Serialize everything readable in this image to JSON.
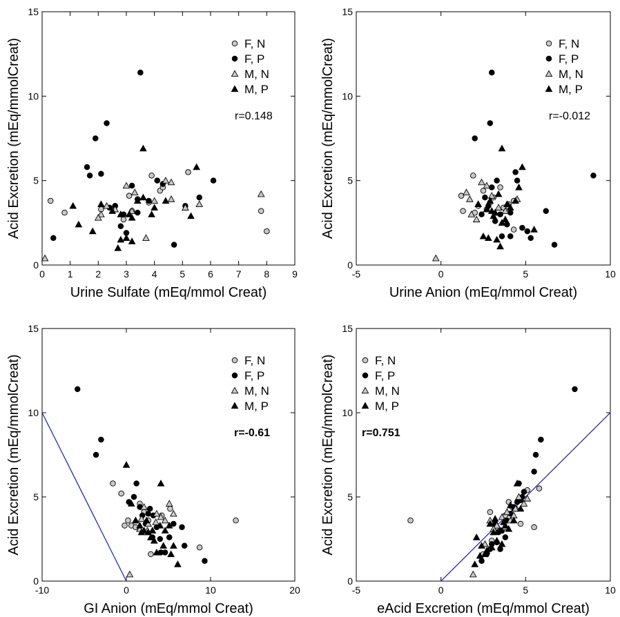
{
  "legend": {
    "FN": {
      "label": "F, N",
      "fill": "#c8c8c8",
      "shape": "circle"
    },
    "FP": {
      "label": "F, P",
      "fill": "#000000",
      "shape": "circle"
    },
    "MN": {
      "label": "M, N",
      "fill": "#c8c8c8",
      "shape": "triangle"
    },
    "MP": {
      "label": "M, P",
      "fill": "#000000",
      "shape": "triangle"
    }
  },
  "line_color": "#2b2ba8",
  "chart_data": [
    {
      "type": "scatter",
      "xlabel": "Urine Sulfate (mEq/mmol Creat)",
      "ylabel": "Acid Excretion (mEq/mmolCreat)",
      "xlim": [
        0,
        9
      ],
      "ylim": [
        0,
        15
      ],
      "xticks": [
        "0",
        "1",
        "2",
        "3",
        "4",
        "5",
        "6",
        "7",
        "8",
        "9"
      ],
      "yticks": [
        "0",
        "5",
        "10",
        "15"
      ],
      "annotation": "r=0.148",
      "annotation_bold": false,
      "legend_position": "top-right",
      "series": {
        "FN": [
          [
            0.3,
            3.8
          ],
          [
            0.8,
            3.1
          ],
          [
            2.1,
            3.3
          ],
          [
            2.9,
            2.7
          ],
          [
            3.1,
            4.1
          ],
          [
            3.2,
            3.2
          ],
          [
            3.9,
            5.3
          ],
          [
            4.2,
            4.4
          ],
          [
            4.3,
            4.6
          ],
          [
            5.2,
            5.5
          ],
          [
            7.8,
            3.2
          ],
          [
            8.0,
            2.0
          ],
          [
            3.8,
            3.7
          ],
          [
            2.6,
            3.5
          ]
        ],
        "FP": [
          [
            0.4,
            1.6
          ],
          [
            1.6,
            5.8
          ],
          [
            1.9,
            7.5
          ],
          [
            1.7,
            5.3
          ],
          [
            2.3,
            8.4
          ],
          [
            2.1,
            5.4
          ],
          [
            2.6,
            3.5
          ],
          [
            2.9,
            3.0
          ],
          [
            3.0,
            1.9
          ],
          [
            3.2,
            4.7
          ],
          [
            3.4,
            3.9
          ],
          [
            3.5,
            11.4
          ],
          [
            3.8,
            3.8
          ],
          [
            4.1,
            5.0
          ],
          [
            4.3,
            4.8
          ],
          [
            4.7,
            1.2
          ],
          [
            5.1,
            3.5
          ],
          [
            5.6,
            4.0
          ],
          [
            6.1,
            5.0
          ],
          [
            2.8,
            2.3
          ],
          [
            3.4,
            3.1
          ],
          [
            2.4,
            3.4
          ]
        ],
        "MN": [
          [
            0.1,
            0.4
          ],
          [
            2.1,
            3.0
          ],
          [
            2.3,
            3.5
          ],
          [
            2.6,
            3.3
          ],
          [
            3.0,
            4.7
          ],
          [
            3.2,
            3.2
          ],
          [
            3.3,
            4.3
          ],
          [
            3.7,
            1.6
          ],
          [
            4.0,
            3.8
          ],
          [
            4.4,
            5.0
          ],
          [
            4.6,
            4.9
          ],
          [
            4.6,
            3.9
          ],
          [
            5.1,
            3.4
          ],
          [
            5.6,
            3.6
          ],
          [
            7.8,
            4.2
          ],
          [
            2.0,
            2.8
          ]
        ],
        "MP": [
          [
            1.1,
            3.5
          ],
          [
            1.3,
            2.4
          ],
          [
            1.8,
            2.0
          ],
          [
            2.1,
            3.6
          ],
          [
            2.5,
            3.2
          ],
          [
            2.8,
            3.0
          ],
          [
            2.8,
            1.5
          ],
          [
            2.7,
            1.0
          ],
          [
            3.0,
            1.6
          ],
          [
            3.1,
            3.0
          ],
          [
            3.2,
            2.8
          ],
          [
            3.4,
            3.8
          ],
          [
            3.6,
            6.9
          ],
          [
            3.9,
            3.0
          ],
          [
            4.0,
            3.4
          ],
          [
            4.4,
            3.8
          ],
          [
            5.5,
            5.8
          ],
          [
            5.3,
            2.9
          ],
          [
            3.2,
            1.4
          ],
          [
            3.6,
            4.0
          ]
        ]
      }
    },
    {
      "type": "scatter",
      "xlabel": "Urine Anion (mEq/mmol Creat)",
      "ylabel": "Acid Excretion (mEq/mmolCreat)",
      "xlim": [
        -5,
        10
      ],
      "ylim": [
        0,
        15
      ],
      "xticks": [
        "-5",
        "0",
        "5",
        "10"
      ],
      "yticks": [
        "0",
        "5",
        "10",
        "15"
      ],
      "annotation": "r=-0.012",
      "annotation_bold": false,
      "legend_position": "top-right",
      "series": {
        "FN": [
          [
            1.2,
            4.1
          ],
          [
            1.9,
            5.3
          ],
          [
            2.2,
            3.5
          ],
          [
            2.7,
            3.3
          ],
          [
            3.1,
            4.0
          ],
          [
            3.5,
            4.6
          ],
          [
            3.7,
            3.4
          ],
          [
            4.0,
            3.6
          ],
          [
            4.3,
            3.8
          ],
          [
            4.3,
            2.1
          ],
          [
            2.0,
            3.1
          ],
          [
            1.3,
            3.2
          ],
          [
            2.5,
            4.4
          ],
          [
            2.9,
            3.7
          ]
        ],
        "FP": [
          [
            2.0,
            7.5
          ],
          [
            3.0,
            11.4
          ],
          [
            2.9,
            8.4
          ],
          [
            3.3,
            5.0
          ],
          [
            2.6,
            4.0
          ],
          [
            2.8,
            3.5
          ],
          [
            3.5,
            3.0
          ],
          [
            4.4,
            5.5
          ],
          [
            4.8,
            2.2
          ],
          [
            5.1,
            2.0
          ],
          [
            5.3,
            1.6
          ],
          [
            6.2,
            3.2
          ],
          [
            6.7,
            1.2
          ],
          [
            9.0,
            5.3
          ],
          [
            2.4,
            3.0
          ],
          [
            3.6,
            1.7
          ],
          [
            4.1,
            3.1
          ],
          [
            3.2,
            2.6
          ],
          [
            4.5,
            5.0
          ],
          [
            3.0,
            4.6
          ],
          [
            4.1,
            1.7
          ],
          [
            3.9,
            2.4
          ]
        ],
        "MN": [
          [
            -0.3,
            0.4
          ],
          [
            1.5,
            4.3
          ],
          [
            1.8,
            3.0
          ],
          [
            2.1,
            2.7
          ],
          [
            2.4,
            4.9
          ],
          [
            2.7,
            4.7
          ],
          [
            3.0,
            4.1
          ],
          [
            3.4,
            3.4
          ],
          [
            3.8,
            3.2
          ],
          [
            4.0,
            3.5
          ],
          [
            4.5,
            3.9
          ],
          [
            2.2,
            3.6
          ],
          [
            3.2,
            3.1
          ],
          [
            1.7,
            3.9
          ]
        ],
        "MP": [
          [
            2.2,
            3.6
          ],
          [
            2.8,
            1.6
          ],
          [
            3.0,
            3.2
          ],
          [
            3.3,
            1.5
          ],
          [
            3.6,
            6.9
          ],
          [
            3.6,
            2.5
          ],
          [
            3.9,
            3.6
          ],
          [
            4.4,
            3.8
          ],
          [
            4.8,
            5.8
          ],
          [
            5.5,
            2.1
          ],
          [
            3.5,
            1.1
          ],
          [
            2.7,
            3.3
          ],
          [
            3.2,
            3.1
          ],
          [
            4.6,
            4.6
          ],
          [
            3.8,
            2.7
          ],
          [
            2.5,
            1.7
          ],
          [
            3.1,
            2.9
          ],
          [
            4.1,
            3.4
          ],
          [
            3.4,
            4.2
          ],
          [
            2.9,
            3.8
          ]
        ]
      }
    },
    {
      "type": "scatter",
      "xlabel": "GI Anion (mEq/mmol Creat)",
      "ylabel": "Acid Excretion (mEq/mmolCreat)",
      "xlim": [
        -10,
        20
      ],
      "ylim": [
        0,
        15
      ],
      "xticks": [
        "-10",
        "0",
        "10",
        "20"
      ],
      "yticks": [
        "0",
        "5",
        "10",
        "15"
      ],
      "annotation": "r=-0.61",
      "annotation_bold": true,
      "legend_position": "top-right",
      "line": [
        [
          -10,
          10
        ],
        [
          0,
          0
        ]
      ],
      "series": {
        "FN": [
          [
            -1.6,
            5.8
          ],
          [
            -0.6,
            5.2
          ],
          [
            0.2,
            3.6
          ],
          [
            0.6,
            3.3
          ],
          [
            1.1,
            3.2
          ],
          [
            1.6,
            4.6
          ],
          [
            2.1,
            4.1
          ],
          [
            2.6,
            3.6
          ],
          [
            2.9,
            1.6
          ],
          [
            4.2,
            3.9
          ],
          [
            5.2,
            4.3
          ],
          [
            8.7,
            2.0
          ],
          [
            13.0,
            3.6
          ],
          [
            -0.2,
            3.3
          ]
        ],
        "FP": [
          [
            -5.8,
            11.4
          ],
          [
            -3.0,
            8.4
          ],
          [
            -3.6,
            7.5
          ],
          [
            0.3,
            4.7
          ],
          [
            0.9,
            5.0
          ],
          [
            1.2,
            5.8
          ],
          [
            1.9,
            3.9
          ],
          [
            2.3,
            3.4
          ],
          [
            2.8,
            4.3
          ],
          [
            3.1,
            2.6
          ],
          [
            3.6,
            3.2
          ],
          [
            4.1,
            1.7
          ],
          [
            4.6,
            1.7
          ],
          [
            5.1,
            2.6
          ],
          [
            5.6,
            3.4
          ],
          [
            6.6,
            3.2
          ],
          [
            6.9,
            2.1
          ],
          [
            9.3,
            1.2
          ],
          [
            1.6,
            4.4
          ],
          [
            2.6,
            4.0
          ],
          [
            3.2,
            3.9
          ],
          [
            4.0,
            2.5
          ]
        ],
        "MN": [
          [
            0.4,
            0.4
          ],
          [
            1.1,
            3.6
          ],
          [
            1.6,
            3.1
          ],
          [
            2.1,
            4.4
          ],
          [
            2.6,
            3.4
          ],
          [
            3.1,
            3.0
          ],
          [
            3.6,
            4.0
          ],
          [
            4.1,
            3.8
          ],
          [
            4.6,
            3.6
          ],
          [
            5.1,
            4.6
          ],
          [
            5.6,
            4.0
          ],
          [
            2.5,
            3.0
          ],
          [
            3.5,
            3.5
          ],
          [
            1.8,
            3.7
          ]
        ],
        "MP": [
          [
            0.0,
            6.9
          ],
          [
            0.6,
            4.6
          ],
          [
            1.1,
            3.6
          ],
          [
            1.6,
            3.3
          ],
          [
            2.1,
            3.0
          ],
          [
            2.6,
            2.9
          ],
          [
            3.1,
            3.0
          ],
          [
            4.1,
            5.8
          ],
          [
            4.6,
            3.0
          ],
          [
            5.1,
            3.3
          ],
          [
            5.6,
            2.1
          ],
          [
            6.1,
            1.0
          ],
          [
            2.9,
            2.6
          ],
          [
            3.6,
            1.7
          ],
          [
            4.4,
            2.1
          ],
          [
            1.8,
            2.9
          ],
          [
            2.4,
            3.6
          ],
          [
            3.3,
            2.4
          ],
          [
            4.0,
            3.3
          ],
          [
            5.3,
            1.6
          ]
        ]
      }
    },
    {
      "type": "scatter",
      "xlabel": "eAcid Excretion (mEq/mmol Creat)",
      "ylabel": "Acid Excretion (mEq/mmolCreat)",
      "xlim": [
        -5,
        10
      ],
      "ylim": [
        0,
        15
      ],
      "xticks": [
        "-5",
        "0",
        "5",
        "10"
      ],
      "yticks": [
        "0",
        "5",
        "10",
        "15"
      ],
      "annotation": "r=0.751",
      "annotation_bold": true,
      "legend_position": "top-left",
      "line": [
        [
          0,
          0
        ],
        [
          10,
          10
        ]
      ],
      "series": {
        "FN": [
          [
            -1.8,
            3.6
          ],
          [
            2.9,
            4.1
          ],
          [
            3.3,
            3.2
          ],
          [
            3.8,
            3.9
          ],
          [
            4.2,
            4.4
          ],
          [
            4.7,
            3.4
          ],
          [
            5.1,
            5.4
          ],
          [
            5.5,
            3.2
          ],
          [
            5.8,
            5.5
          ],
          [
            3.0,
            2.4
          ],
          [
            2.5,
            1.6
          ],
          [
            4.0,
            4.7
          ],
          [
            3.5,
            3.0
          ],
          [
            4.4,
            4.3
          ]
        ],
        "FP": [
          [
            7.9,
            11.4
          ],
          [
            5.9,
            8.4
          ],
          [
            5.6,
            7.5
          ],
          [
            4.6,
            5.8
          ],
          [
            4.9,
            5.3
          ],
          [
            5.5,
            6.5
          ],
          [
            4.8,
            5.0
          ],
          [
            4.3,
            4.4
          ],
          [
            3.9,
            3.6
          ],
          [
            3.4,
            2.9
          ],
          [
            3.0,
            2.2
          ],
          [
            2.7,
            1.6
          ],
          [
            2.4,
            1.2
          ],
          [
            3.2,
            3.4
          ],
          [
            3.6,
            3.0
          ],
          [
            4.1,
            4.0
          ],
          [
            3.8,
            2.6
          ],
          [
            2.9,
            1.9
          ],
          [
            4.5,
            4.7
          ],
          [
            3.3,
            2.3
          ],
          [
            4.7,
            4.8
          ],
          [
            3.5,
            1.9
          ]
        ],
        "MN": [
          [
            1.9,
            0.4
          ],
          [
            2.9,
            3.6
          ],
          [
            3.3,
            3.3
          ],
          [
            3.6,
            3.8
          ],
          [
            3.9,
            4.1
          ],
          [
            4.1,
            3.6
          ],
          [
            4.4,
            4.3
          ],
          [
            4.6,
            5.0
          ],
          [
            4.9,
            4.6
          ],
          [
            5.1,
            4.9
          ],
          [
            3.1,
            3.1
          ],
          [
            2.6,
            2.2
          ],
          [
            4.3,
            3.9
          ],
          [
            3.8,
            3.2
          ]
        ],
        "MP": [
          [
            2.0,
            1.0
          ],
          [
            2.1,
            2.6
          ],
          [
            2.4,
            2.1
          ],
          [
            2.6,
            1.6
          ],
          [
            2.9,
            3.4
          ],
          [
            3.1,
            2.9
          ],
          [
            3.3,
            2.4
          ],
          [
            3.5,
            3.0
          ],
          [
            3.7,
            3.5
          ],
          [
            4.0,
            3.1
          ],
          [
            4.3,
            3.6
          ],
          [
            4.5,
            5.8
          ],
          [
            4.7,
            4.3
          ],
          [
            3.6,
            2.2
          ],
          [
            3.0,
            2.0
          ],
          [
            3.8,
            3.3
          ],
          [
            2.3,
            1.5
          ],
          [
            3.2,
            3.7
          ],
          [
            4.1,
            4.5
          ],
          [
            2.7,
            1.8
          ]
        ]
      }
    }
  ]
}
